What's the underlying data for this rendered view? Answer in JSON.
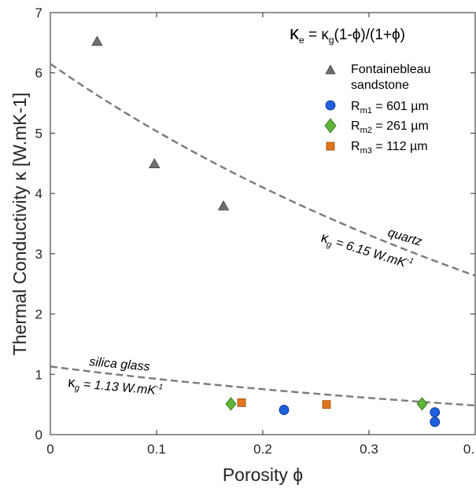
{
  "chart_data": {
    "type": "scatter",
    "xlabel": "Porosity ϕ",
    "ylabel": "Thermal Conductivity κ [W.mK-1]",
    "xlim": [
      0,
      0.4
    ],
    "ylim": [
      0,
      7
    ],
    "x_ticks": [
      "0",
      "0.1",
      "0.2",
      "0.3",
      "0."
    ],
    "y_ticks": [
      "0",
      "1",
      "2",
      "3",
      "4",
      "5",
      "6",
      "7"
    ],
    "legend_position": "top-right",
    "equation": "κe = κg(1-ϕ)/(1+ϕ)",
    "series": [
      {
        "name": "Fontainebleau sandstone",
        "marker": "triangle",
        "color": "#6e6e6e",
        "points": [
          [
            0.044,
            6.52
          ],
          [
            0.098,
            4.49
          ],
          [
            0.163,
            3.79
          ]
        ]
      },
      {
        "name": "Rm1 = 601 µm",
        "marker": "circle",
        "color": "#1f5fe0",
        "points": [
          [
            0.22,
            0.41
          ],
          [
            0.362,
            0.37
          ],
          [
            0.362,
            0.21
          ]
        ]
      },
      {
        "name": "Rm2 = 261 µm",
        "marker": "diamond",
        "color": "#5fb53a",
        "points": [
          [
            0.17,
            0.51
          ],
          [
            0.35,
            0.51
          ]
        ]
      },
      {
        "name": "Rm3 = 112 µm",
        "marker": "square",
        "color": "#e0761f",
        "points": [
          [
            0.18,
            0.53
          ],
          [
            0.26,
            0.5
          ]
        ]
      }
    ],
    "curves": [
      {
        "name": "quartz",
        "kappa_g": 6.15,
        "style": "dashed",
        "color": "#7a7a7a"
      },
      {
        "name": "silica glass",
        "kappa_g": 1.13,
        "style": "dashed",
        "color": "#7a7a7a"
      }
    ]
  },
  "legend": {
    "fontainebleau_line1": "Fontainebleau",
    "fontainebleau_line2": "sandstone",
    "rm1_sub": "m1",
    "rm1_rest": " = 601 µm",
    "rm2_sub": "m2",
    "rm2_rest": " = 261 µm",
    "rm3_sub": "m3",
    "rm3_rest": " = 112 µm"
  },
  "equation_parts": {
    "kappa": "κ",
    "sub_e": "e",
    "mid": " = κ",
    "sub_g": "g",
    "rest": "(1-ϕ)/(1+ϕ)"
  },
  "annotations": {
    "quartz": "quartz",
    "quartz_kappa": "κ",
    "quartz_sub": "g",
    "quartz_value": " = 6.15 W.mK",
    "quartz_sup": "-1",
    "silica": "silica glass",
    "silica_kappa": "κ",
    "silica_sub": "g",
    "silica_value": " = 1.13 W.mK",
    "silica_sup": "-1"
  }
}
